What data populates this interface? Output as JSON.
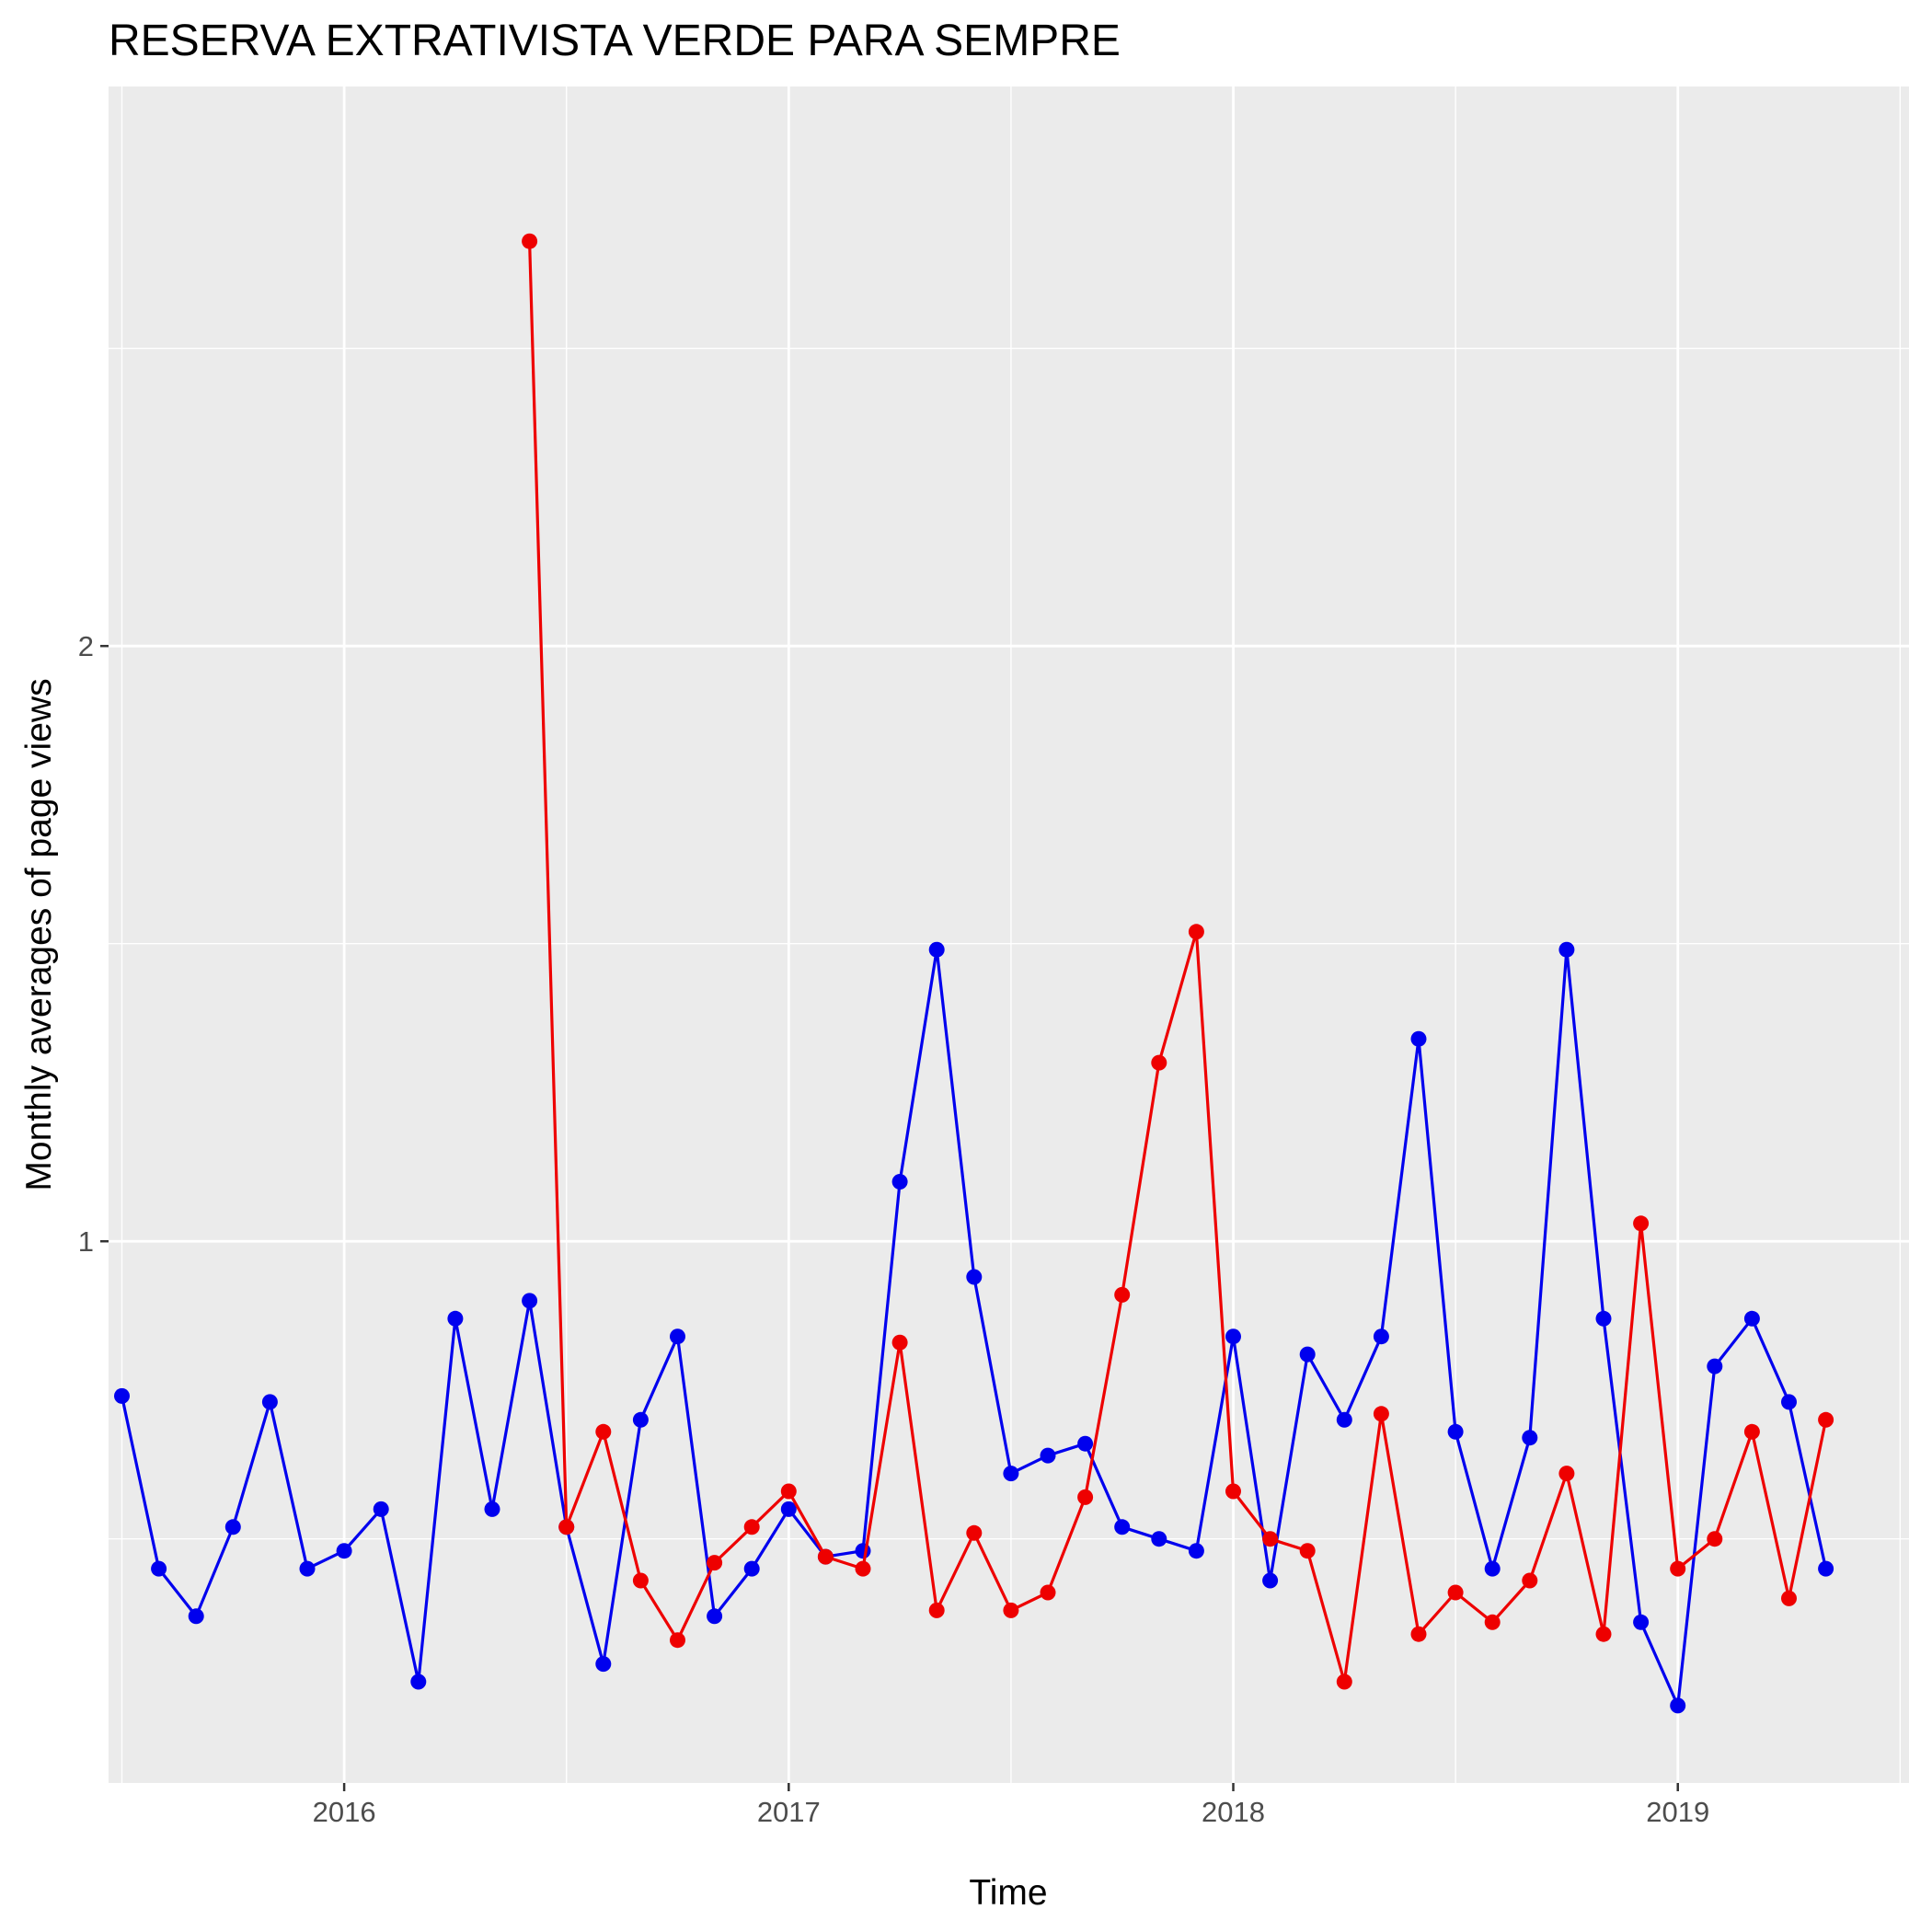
{
  "chart_data": {
    "type": "line",
    "title": "RESERVA EXTRATIVISTA VERDE PARA SEMPRE",
    "xlabel": "Time",
    "ylabel": "Monthly averages of page views",
    "x_ticks": [
      "2016",
      "2017",
      "2018",
      "2019"
    ],
    "y_ticks": [
      "1",
      "2"
    ],
    "xlim": [
      2015.47,
      2019.52
    ],
    "ylim": [
      0.09,
      2.94
    ],
    "grid": true,
    "legend": "none",
    "background_color": "#ebebeb",
    "gridline_color": "#ffffff",
    "tick_color": "#333333",
    "series": [
      {
        "color": "#0000ee",
        "x": [
          2015.5,
          2015.583,
          2015.667,
          2015.75,
          2015.833,
          2015.917,
          2016.0,
          2016.083,
          2016.167,
          2016.25,
          2016.333,
          2016.417,
          2016.5,
          2016.583,
          2016.667,
          2016.75,
          2016.833,
          2016.917,
          2017.0,
          2017.083,
          2017.167,
          2017.25,
          2017.333,
          2017.417,
          2017.5,
          2017.583,
          2017.667,
          2017.75,
          2017.833,
          2017.917,
          2018.0,
          2018.083,
          2018.167,
          2018.25,
          2018.333,
          2018.417,
          2018.5,
          2018.583,
          2018.667,
          2018.75,
          2018.833,
          2018.917,
          2019.0,
          2019.083,
          2019.167,
          2019.25,
          2019.333
        ],
        "values": [
          0.74,
          0.45,
          0.37,
          0.52,
          0.73,
          0.45,
          0.48,
          0.55,
          0.26,
          0.87,
          0.55,
          0.9,
          0.52,
          0.29,
          0.7,
          0.84,
          0.37,
          0.45,
          0.55,
          0.47,
          0.48,
          1.1,
          1.49,
          0.94,
          0.61,
          0.64,
          0.66,
          0.52,
          0.5,
          0.48,
          0.84,
          0.43,
          0.81,
          0.7,
          0.84,
          1.34,
          0.68,
          0.45,
          0.67,
          1.49,
          0.87,
          0.36,
          0.22,
          0.79,
          0.87,
          0.73,
          0.45
        ]
      },
      {
        "color": "#ee0000",
        "x": [
          2016.417,
          2016.5,
          2016.583,
          2016.667,
          2016.75,
          2016.833,
          2016.917,
          2017.0,
          2017.083,
          2017.167,
          2017.25,
          2017.333,
          2017.417,
          2017.5,
          2017.583,
          2017.667,
          2017.75,
          2017.833,
          2017.917,
          2018.0,
          2018.083,
          2018.167,
          2018.25,
          2018.333,
          2018.417,
          2018.5,
          2018.583,
          2018.667,
          2018.75,
          2018.833,
          2018.917,
          2019.0,
          2019.083,
          2019.167,
          2019.25,
          2019.333
        ],
        "values": [
          2.68,
          0.52,
          0.68,
          0.43,
          0.33,
          0.46,
          0.52,
          0.58,
          0.47,
          0.45,
          0.83,
          0.38,
          0.51,
          0.38,
          0.41,
          0.57,
          0.91,
          1.3,
          1.52,
          0.58,
          0.5,
          0.48,
          0.26,
          0.71,
          0.34,
          0.41,
          0.36,
          0.43,
          0.61,
          0.34,
          1.03,
          0.45,
          0.5,
          0.68,
          0.4,
          0.7
        ]
      }
    ]
  }
}
